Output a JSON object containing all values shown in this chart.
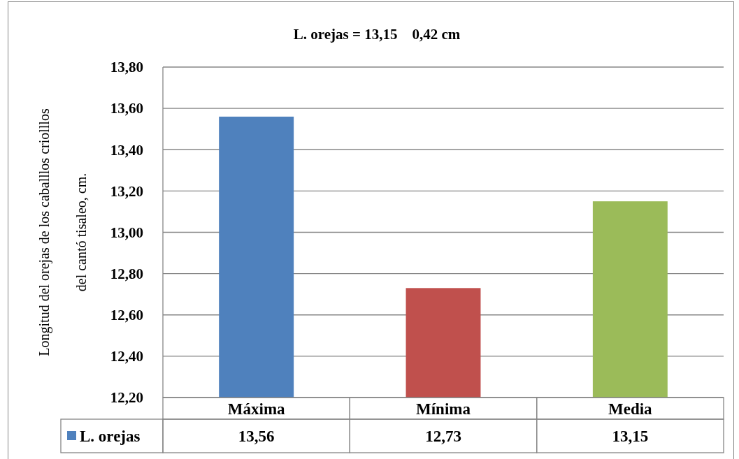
{
  "chart_data": {
    "type": "bar",
    "title": "L. orejas = 13,15    0,42 cm",
    "ylabel": "Longitud del orejas de los caballlos criolllos\ndel cantó tisaleo, cm.",
    "categories": [
      "Máxima",
      "Mínima",
      "Media"
    ],
    "series": [
      {
        "name": "L. orejas",
        "color": "#4f81bd",
        "colors": [
          "#4f81bd",
          "#c0504d",
          "#9bbb59"
        ],
        "values": [
          13.56,
          12.73,
          13.15
        ],
        "value_labels": [
          "13,56",
          "12,73",
          "13,15"
        ]
      }
    ],
    "ylim": [
      12.2,
      13.8
    ],
    "yticks": [
      {
        "value": 12.2,
        "label": "12,20"
      },
      {
        "value": 12.4,
        "label": "12,40"
      },
      {
        "value": 12.6,
        "label": "12,60"
      },
      {
        "value": 12.8,
        "label": "12,80"
      },
      {
        "value": 13.0,
        "label": "13,00"
      },
      {
        "value": 13.2,
        "label": "13,20"
      },
      {
        "value": 13.4,
        "label": "13,40"
      },
      {
        "value": 13.6,
        "label": "13,60"
      },
      {
        "value": 13.8,
        "label": "13,80"
      }
    ],
    "grid": "y",
    "legend": "bottom"
  }
}
